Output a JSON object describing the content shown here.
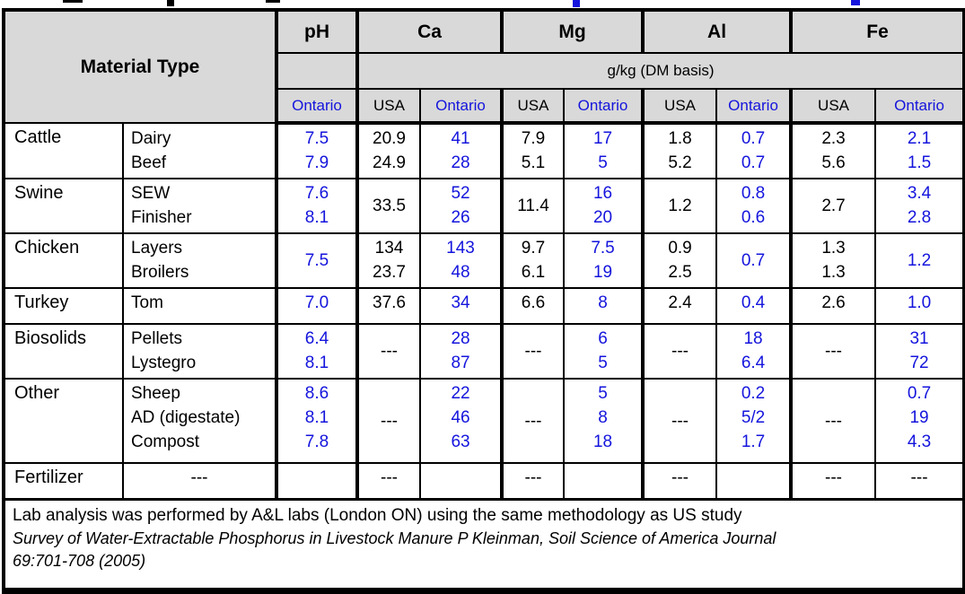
{
  "colors": {
    "ontario_blue": "#1414DD",
    "usa_black": "#000000",
    "header_bg": "#D9D9D9",
    "border": "#000000"
  },
  "header": {
    "material_type_label": "Material Type",
    "units_label": "g/kg (DM basis)",
    "groups": [
      {
        "label": "pH",
        "subcols": [
          {
            "label": "Ontario",
            "blue": true
          }
        ]
      },
      {
        "label": "Ca",
        "subcols": [
          {
            "label": "USA",
            "blue": false
          },
          {
            "label": "Ontario",
            "blue": true
          }
        ]
      },
      {
        "label": "Mg",
        "subcols": [
          {
            "label": "USA",
            "blue": false
          },
          {
            "label": "Ontario",
            "blue": true
          }
        ]
      },
      {
        "label": "Al",
        "subcols": [
          {
            "label": "USA",
            "blue": false
          },
          {
            "label": "Ontario",
            "blue": true
          }
        ]
      },
      {
        "label": "Fe",
        "subcols": [
          {
            "label": "USA",
            "blue": false
          },
          {
            "label": "Ontario",
            "blue": true
          }
        ]
      }
    ]
  },
  "rows": [
    {
      "category": "Cattle",
      "subtypes": [
        "Dairy",
        "Beef"
      ],
      "subtype_centered": false,
      "values": {
        "ph": {
          "lines": [
            "7.5",
            "7.9"
          ],
          "blue": true
        },
        "ca_usa": {
          "lines": [
            "20.9",
            "24.9"
          ],
          "blue": false
        },
        "ca_on": {
          "lines": [
            "41",
            "28"
          ],
          "blue": true
        },
        "mg_usa": {
          "lines": [
            "7.9",
            "5.1"
          ],
          "blue": false
        },
        "mg_on": {
          "lines": [
            "17",
            "5"
          ],
          "blue": true
        },
        "al_usa": {
          "lines": [
            "1.8",
            "5.2"
          ],
          "blue": false
        },
        "al_on": {
          "lines": [
            "0.7",
            "0.7"
          ],
          "blue": true
        },
        "fe_usa": {
          "lines": [
            "2.3",
            "5.6"
          ],
          "blue": false
        },
        "fe_on": {
          "lines": [
            "2.1",
            "1.5"
          ],
          "blue": true
        }
      }
    },
    {
      "category": "Swine",
      "subtypes": [
        "SEW",
        "Finisher"
      ],
      "subtype_centered": false,
      "values": {
        "ph": {
          "lines": [
            "7.6",
            "8.1"
          ],
          "blue": true
        },
        "ca_usa": {
          "lines": [
            "33.5"
          ],
          "blue": false
        },
        "ca_on": {
          "lines": [
            "52",
            "26"
          ],
          "blue": true
        },
        "mg_usa": {
          "lines": [
            "11.4"
          ],
          "blue": false
        },
        "mg_on": {
          "lines": [
            "16",
            "20"
          ],
          "blue": true
        },
        "al_usa": {
          "lines": [
            "1.2"
          ],
          "blue": false
        },
        "al_on": {
          "lines": [
            "0.8",
            "0.6"
          ],
          "blue": true
        },
        "fe_usa": {
          "lines": [
            "2.7"
          ],
          "blue": false
        },
        "fe_on": {
          "lines": [
            "3.4",
            "2.8"
          ],
          "blue": true
        }
      }
    },
    {
      "category": "Chicken",
      "subtypes": [
        "Layers",
        "Broilers"
      ],
      "subtype_centered": false,
      "values": {
        "ph": {
          "lines": [
            "7.5"
          ],
          "blue": true
        },
        "ca_usa": {
          "lines": [
            "134",
            "23.7"
          ],
          "blue": false
        },
        "ca_on": {
          "lines": [
            "143",
            "48"
          ],
          "blue": true
        },
        "mg_usa": {
          "lines": [
            "9.7",
            "6.1"
          ],
          "blue": false
        },
        "mg_on": {
          "lines": [
            "7.5",
            "19"
          ],
          "blue": true
        },
        "al_usa": {
          "lines": [
            "0.9",
            "2.5"
          ],
          "blue": false
        },
        "al_on": {
          "lines": [
            "0.7"
          ],
          "blue": true
        },
        "fe_usa": {
          "lines": [
            "1.3",
            "1.3"
          ],
          "blue": false
        },
        "fe_on": {
          "lines": [
            "1.2"
          ],
          "blue": true
        }
      }
    },
    {
      "category": "Turkey",
      "subtypes": [
        "Tom"
      ],
      "subtype_centered": false,
      "values": {
        "ph": {
          "lines": [
            "7.0"
          ],
          "blue": true
        },
        "ca_usa": {
          "lines": [
            "37.6"
          ],
          "blue": false
        },
        "ca_on": {
          "lines": [
            "34"
          ],
          "blue": true
        },
        "mg_usa": {
          "lines": [
            "6.6"
          ],
          "blue": false
        },
        "mg_on": {
          "lines": [
            "8"
          ],
          "blue": true
        },
        "al_usa": {
          "lines": [
            "2.4"
          ],
          "blue": false
        },
        "al_on": {
          "lines": [
            "0.4"
          ],
          "blue": true
        },
        "fe_usa": {
          "lines": [
            "2.6"
          ],
          "blue": false
        },
        "fe_on": {
          "lines": [
            "1.0"
          ],
          "blue": true
        }
      }
    },
    {
      "category": "Biosolids",
      "subtypes": [
        "Pellets",
        "Lystegro"
      ],
      "subtype_centered": false,
      "values": {
        "ph": {
          "lines": [
            "6.4",
            "8.1"
          ],
          "blue": true
        },
        "ca_usa": {
          "lines": [
            "---"
          ],
          "blue": false
        },
        "ca_on": {
          "lines": [
            "28",
            "87"
          ],
          "blue": true
        },
        "mg_usa": {
          "lines": [
            "---"
          ],
          "blue": false
        },
        "mg_on": {
          "lines": [
            "6",
            "5"
          ],
          "blue": true
        },
        "al_usa": {
          "lines": [
            "---"
          ],
          "blue": false
        },
        "al_on": {
          "lines": [
            "18",
            "6.4"
          ],
          "blue": true
        },
        "fe_usa": {
          "lines": [
            "---"
          ],
          "blue": false
        },
        "fe_on": {
          "lines": [
            "31",
            "72"
          ],
          "blue": true
        }
      }
    },
    {
      "category": "Other",
      "subtypes": [
        "Sheep",
        "AD (digestate)",
        "Compost"
      ],
      "subtype_centered": false,
      "values": {
        "ph": {
          "lines": [
            "8.6",
            "8.1",
            "7.8"
          ],
          "blue": true
        },
        "ca_usa": {
          "lines": [
            "---"
          ],
          "blue": false
        },
        "ca_on": {
          "lines": [
            "22",
            "46",
            "63"
          ],
          "blue": true
        },
        "mg_usa": {
          "lines": [
            "---"
          ],
          "blue": false
        },
        "mg_on": {
          "lines": [
            "5",
            "8",
            "18"
          ],
          "blue": true
        },
        "al_usa": {
          "lines": [
            "---"
          ],
          "blue": false
        },
        "al_on": {
          "lines": [
            "0.2",
            "5/2",
            "1.7"
          ],
          "blue": true
        },
        "fe_usa": {
          "lines": [
            "---"
          ],
          "blue": false
        },
        "fe_on": {
          "lines": [
            "0.7",
            "19",
            "4.3"
          ],
          "blue": true
        }
      }
    },
    {
      "category": "Fertilizer",
      "subtypes": [
        "---"
      ],
      "subtype_centered": true,
      "values": {
        "ph": {
          "lines": [],
          "blue": true
        },
        "ca_usa": {
          "lines": [
            "---"
          ],
          "blue": false
        },
        "ca_on": {
          "lines": [],
          "blue": true
        },
        "mg_usa": {
          "lines": [
            "---"
          ],
          "blue": false
        },
        "mg_on": {
          "lines": [],
          "blue": true
        },
        "al_usa": {
          "lines": [
            "---"
          ],
          "blue": false
        },
        "al_on": {
          "lines": [],
          "blue": true
        },
        "fe_usa": {
          "lines": [
            "---"
          ],
          "blue": false
        },
        "fe_on": {
          "lines": [
            "---"
          ],
          "blue": false
        }
      }
    }
  ],
  "footnote": {
    "line1": "Lab analysis was performed by A&L labs (London ON) using the same methodology as US study",
    "line2": "Survey of Water-Extractable Phosphorus in Livestock Manure P Kleinman, Soil Science of America Journal",
    "line3": "69:701-708 (2005)"
  }
}
